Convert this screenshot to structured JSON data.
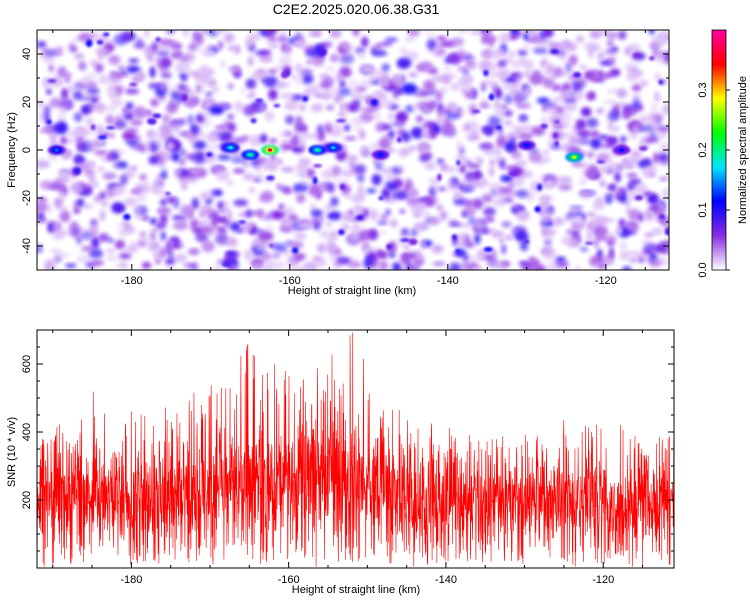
{
  "title": "C2E2.2025.020.06.38.G31",
  "chart_data": [
    {
      "type": "heatmap",
      "title": "C2E2.2025.020.06.38.G31",
      "xlabel": "Height of straight line (km)",
      "ylabel": "Frequency (Hz)",
      "xlim": [
        -192,
        -112
      ],
      "ylim": [
        -50,
        50
      ],
      "x_ticks": [
        -180,
        -160,
        -140,
        -120
      ],
      "x_tick_labels": [
        "-180",
        "-160",
        "-140",
        "-120"
      ],
      "y_ticks": [
        -40,
        -20,
        0,
        20,
        40
      ],
      "y_tick_labels": [
        "-40",
        "-20",
        "0",
        "20",
        "40"
      ],
      "colorbar": {
        "label": "Normalized spectral amplitude",
        "range": [
          0,
          0.4
        ],
        "ticks": [
          0,
          0.1,
          0.2,
          0.3
        ],
        "tick_labels": [
          "0.0",
          "0.1",
          "0.2",
          "0.3"
        ],
        "colormap": [
          "#ffffff",
          "#8a2be2",
          "#0000ff",
          "#00e5ff",
          "#00ff00",
          "#ffff00",
          "#ff0000",
          "#ff00a0"
        ]
      },
      "hotspots": [
        {
          "x": -162.5,
          "y": 0,
          "value": 0.36
        },
        {
          "x": -165,
          "y": -2,
          "value": 0.2
        },
        {
          "x": -167.5,
          "y": 1,
          "value": 0.18
        },
        {
          "x": -156.5,
          "y": 0,
          "value": 0.2
        },
        {
          "x": -154.5,
          "y": 1,
          "value": 0.16
        },
        {
          "x": -124,
          "y": -3,
          "value": 0.27
        },
        {
          "x": -189.5,
          "y": 0,
          "value": 0.14
        },
        {
          "x": -148.5,
          "y": -2,
          "value": 0.12
        },
        {
          "x": -130,
          "y": 2,
          "value": 0.12
        },
        {
          "x": -118,
          "y": 0,
          "value": 0.11
        }
      ],
      "grid": false
    },
    {
      "type": "line",
      "xlabel": "Height of straight line (km)",
      "ylabel": "SNR (10 * v/v)",
      "xlim": [
        -192,
        -111
      ],
      "ylim": [
        0,
        700
      ],
      "x_ticks": [
        -180,
        -160,
        -140,
        -120
      ],
      "x_tick_labels": [
        "-180",
        "-160",
        "-140",
        "-120"
      ],
      "y_ticks": [
        200,
        400,
        600
      ],
      "y_tick_labels": [
        "200",
        "400",
        "600"
      ],
      "color": "#ff0000",
      "envelope": [
        {
          "x": -191,
          "mean": 215,
          "high": 420
        },
        {
          "x": -187,
          "mean": 225,
          "high": 560
        },
        {
          "x": -184,
          "mean": 215,
          "high": 540
        },
        {
          "x": -180,
          "mean": 200,
          "high": 460
        },
        {
          "x": -176,
          "mean": 210,
          "high": 480
        },
        {
          "x": -172,
          "mean": 225,
          "high": 520
        },
        {
          "x": -168,
          "mean": 235,
          "high": 560
        },
        {
          "x": -165,
          "mean": 255,
          "high": 670
        },
        {
          "x": -162,
          "mean": 250,
          "high": 620
        },
        {
          "x": -158,
          "mean": 255,
          "high": 600
        },
        {
          "x": -155,
          "mean": 250,
          "high": 620
        },
        {
          "x": -152,
          "mean": 260,
          "high": 700
        },
        {
          "x": -148,
          "mean": 225,
          "high": 520
        },
        {
          "x": -144,
          "mean": 205,
          "high": 430
        },
        {
          "x": -140,
          "mean": 200,
          "high": 420
        },
        {
          "x": -136,
          "mean": 195,
          "high": 400
        },
        {
          "x": -132,
          "mean": 195,
          "high": 420
        },
        {
          "x": -128,
          "mean": 200,
          "high": 420
        },
        {
          "x": -124,
          "mean": 200,
          "high": 440
        },
        {
          "x": -120,
          "mean": 195,
          "high": 440
        },
        {
          "x": -116,
          "mean": 195,
          "high": 420
        },
        {
          "x": -112,
          "mean": 200,
          "high": 420
        }
      ],
      "grid": false
    }
  ]
}
